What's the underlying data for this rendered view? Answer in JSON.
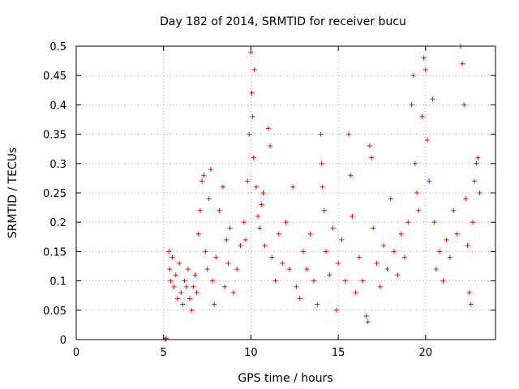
{
  "chart_data": {
    "type": "scatter",
    "title": "Day 182 of 2014, SRMTID for receiver bucu",
    "xlabel": "GPS time / hours",
    "ylabel": "SRMTID / TECUs",
    "xlim": [
      0,
      24
    ],
    "ylim": [
      0,
      0.5
    ],
    "xticks": [
      0,
      5,
      10,
      15,
      20
    ],
    "xtick_labels": [
      "0",
      "5",
      "10",
      "15",
      "20"
    ],
    "yticks": [
      0,
      0.05,
      0.1,
      0.15,
      0.2,
      0.25,
      0.3,
      0.35,
      0.4,
      0.45,
      0.5
    ],
    "ytick_labels": [
      "0",
      "0.05",
      "0.1",
      "0.15",
      "0.2",
      "0.25",
      "0.3",
      "0.35",
      "0.4",
      "0.45",
      "0.5"
    ],
    "grid": true,
    "marker": "+",
    "color": "#ff0000",
    "series": [
      {
        "name": "SRMTID",
        "points": [
          [
            5.1,
            0.0
          ],
          [
            5.15,
            0.002
          ],
          [
            5.3,
            0.15
          ],
          [
            5.35,
            0.12
          ],
          [
            5.4,
            0.1
          ],
          [
            5.5,
            0.14
          ],
          [
            5.6,
            0.09
          ],
          [
            5.7,
            0.11
          ],
          [
            5.8,
            0.07
          ],
          [
            5.9,
            0.13
          ],
          [
            6.0,
            0.08
          ],
          [
            6.1,
            0.06
          ],
          [
            6.2,
            0.1
          ],
          [
            6.3,
            0.09
          ],
          [
            6.4,
            0.12
          ],
          [
            6.5,
            0.07
          ],
          [
            6.6,
            0.05
          ],
          [
            6.7,
            0.09
          ],
          [
            6.8,
            0.11
          ],
          [
            6.9,
            0.08
          ],
          [
            7.0,
            0.18
          ],
          [
            7.1,
            0.22
          ],
          [
            7.2,
            0.27
          ],
          [
            7.3,
            0.28
          ],
          [
            7.4,
            0.15
          ],
          [
            7.5,
            0.12
          ],
          [
            7.6,
            0.24
          ],
          [
            7.7,
            0.29
          ],
          [
            7.8,
            0.1
          ],
          [
            7.9,
            0.06
          ],
          [
            8.0,
            0.14
          ],
          [
            8.2,
            0.22
          ],
          [
            8.4,
            0.26
          ],
          [
            8.5,
            0.09
          ],
          [
            8.6,
            0.17
          ],
          [
            8.7,
            0.13
          ],
          [
            8.8,
            0.19
          ],
          [
            9.0,
            0.08
          ],
          [
            9.2,
            0.12
          ],
          [
            9.4,
            0.16
          ],
          [
            9.6,
            0.2
          ],
          [
            9.7,
            0.17
          ],
          [
            9.8,
            0.27
          ],
          [
            9.9,
            0.35
          ],
          [
            10.0,
            0.49
          ],
          [
            10.05,
            0.42
          ],
          [
            10.1,
            0.38
          ],
          [
            10.15,
            0.31
          ],
          [
            10.2,
            0.46
          ],
          [
            10.3,
            0.26
          ],
          [
            10.4,
            0.21
          ],
          [
            10.5,
            0.19
          ],
          [
            10.6,
            0.23
          ],
          [
            10.7,
            0.25
          ],
          [
            10.8,
            0.16
          ],
          [
            11.0,
            0.36
          ],
          [
            11.1,
            0.33
          ],
          [
            11.2,
            0.14
          ],
          [
            11.4,
            0.1
          ],
          [
            11.6,
            0.18
          ],
          [
            11.8,
            0.13
          ],
          [
            12.0,
            0.2
          ],
          [
            12.2,
            0.12
          ],
          [
            12.4,
            0.26
          ],
          [
            12.6,
            0.09
          ],
          [
            12.8,
            0.07
          ],
          [
            13.0,
            0.15
          ],
          [
            13.2,
            0.12
          ],
          [
            13.4,
            0.18
          ],
          [
            13.6,
            0.1
          ],
          [
            13.8,
            0.06
          ],
          [
            14.0,
            0.35
          ],
          [
            14.05,
            0.3
          ],
          [
            14.1,
            0.26
          ],
          [
            14.2,
            0.22
          ],
          [
            14.3,
            0.15
          ],
          [
            14.5,
            0.11
          ],
          [
            14.7,
            0.19
          ],
          [
            14.9,
            0.05
          ],
          [
            15.0,
            0.13
          ],
          [
            15.2,
            0.17
          ],
          [
            15.4,
            0.1
          ],
          [
            15.6,
            0.35
          ],
          [
            15.7,
            0.28
          ],
          [
            15.8,
            0.21
          ],
          [
            16.0,
            0.08
          ],
          [
            16.2,
            0.14
          ],
          [
            16.4,
            0.1
          ],
          [
            16.6,
            0.04
          ],
          [
            16.7,
            0.03
          ],
          [
            16.8,
            0.33
          ],
          [
            16.9,
            0.31
          ],
          [
            17.0,
            0.19
          ],
          [
            17.2,
            0.13
          ],
          [
            17.4,
            0.09
          ],
          [
            17.6,
            0.16
          ],
          [
            17.8,
            0.12
          ],
          [
            18.0,
            0.24
          ],
          [
            18.2,
            0.15
          ],
          [
            18.4,
            0.11
          ],
          [
            18.6,
            0.18
          ],
          [
            18.8,
            0.14
          ],
          [
            19.0,
            0.2
          ],
          [
            19.2,
            0.4
          ],
          [
            19.3,
            0.45
          ],
          [
            19.4,
            0.3
          ],
          [
            19.5,
            0.25
          ],
          [
            19.6,
            0.22
          ],
          [
            19.8,
            0.38
          ],
          [
            19.9,
            0.48
          ],
          [
            20.0,
            0.46
          ],
          [
            20.1,
            0.34
          ],
          [
            20.2,
            0.27
          ],
          [
            20.4,
            0.41
          ],
          [
            20.5,
            0.2
          ],
          [
            20.6,
            0.12
          ],
          [
            20.8,
            0.15
          ],
          [
            21.0,
            0.1
          ],
          [
            21.2,
            0.17
          ],
          [
            21.4,
            0.14
          ],
          [
            21.6,
            0.22
          ],
          [
            21.8,
            0.18
          ],
          [
            22.0,
            0.5
          ],
          [
            22.1,
            0.47
          ],
          [
            22.2,
            0.4
          ],
          [
            22.3,
            0.24
          ],
          [
            22.4,
            0.16
          ],
          [
            22.5,
            0.08
          ],
          [
            22.6,
            0.06
          ],
          [
            22.7,
            0.2
          ],
          [
            22.8,
            0.27
          ],
          [
            22.9,
            0.3
          ],
          [
            23.0,
            0.31
          ],
          [
            23.1,
            0.25
          ]
        ]
      }
    ]
  }
}
